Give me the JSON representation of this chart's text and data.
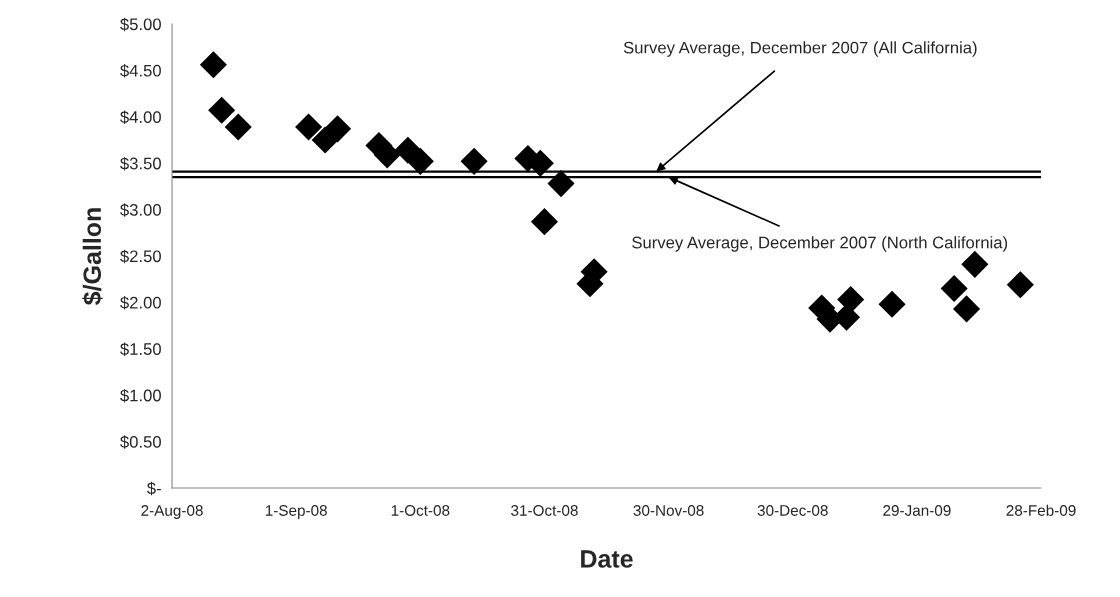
{
  "chart_data": {
    "type": "scatter",
    "xlabel": "Date",
    "ylabel": "$/Gallon",
    "x": [
      "2008-08-12",
      "2008-08-14",
      "2008-08-18",
      "2008-09-04",
      "2008-09-08",
      "2008-09-11",
      "2008-09-21",
      "2008-09-23",
      "2008-09-28",
      "2008-10-01",
      "2008-10-14",
      "2008-10-27",
      "2008-10-30",
      "2008-11-04",
      "2008-10-31",
      "2008-11-12",
      "2008-11-11",
      "2009-01-06",
      "2009-01-08",
      "2009-01-12",
      "2009-01-13",
      "2009-01-23",
      "2009-02-07",
      "2009-02-10",
      "2009-02-12",
      "2009-02-23"
    ],
    "series": [
      {
        "color": "#000000",
        "values": [
          4.56,
          4.07,
          3.89,
          3.89,
          3.75,
          3.87,
          3.69,
          3.59,
          3.64,
          3.52,
          3.52,
          3.55,
          3.5,
          3.28,
          2.87,
          2.33,
          2.2,
          1.94,
          1.82,
          1.84,
          2.03,
          1.98,
          2.15,
          1.93,
          2.41,
          2.19
        ]
      }
    ],
    "marker": "diamond",
    "xlim": [
      "2008-08-02",
      "2009-02-28"
    ],
    "xticks": [
      {
        "value": "2008-08-02",
        "label": "2-Aug-08"
      },
      {
        "value": "2008-09-01",
        "label": "1-Sep-08"
      },
      {
        "value": "2008-10-01",
        "label": "1-Oct-08"
      },
      {
        "value": "2008-10-31",
        "label": "31-Oct-08"
      },
      {
        "value": "2008-11-30",
        "label": "30-Nov-08"
      },
      {
        "value": "2008-12-30",
        "label": "30-Dec-08"
      },
      {
        "value": "2009-01-29",
        "label": "29-Jan-09"
      },
      {
        "value": "2009-02-28",
        "label": "28-Feb-09"
      }
    ],
    "ylim": [
      0,
      5
    ],
    "yticks": [
      {
        "value": 0,
        "label": "$-"
      },
      {
        "value": 0.5,
        "label": "$0.50"
      },
      {
        "value": 1,
        "label": "$1.00"
      },
      {
        "value": 1.5,
        "label": "$1.50"
      },
      {
        "value": 2,
        "label": "$2.00"
      },
      {
        "value": 2.5,
        "label": "$2.50"
      },
      {
        "value": 3,
        "label": "$3.00"
      },
      {
        "value": 3.5,
        "label": "$3.50"
      },
      {
        "value": 4,
        "label": "$4.00"
      },
      {
        "value": 4.5,
        "label": "$4.50"
      },
      {
        "value": 5,
        "label": "$5.00"
      }
    ],
    "ref_lines": [
      {
        "axis": "y",
        "value": 3.41,
        "color": "#000000"
      },
      {
        "axis": "y",
        "value": 3.35,
        "color": "#000000"
      }
    ],
    "annotations": [
      {
        "text": "Survey Average, December 2007 (All California)",
        "x": "2008-11-27",
        "y": 3.41
      },
      {
        "text": "Survey Average, December 2007 (North California)",
        "x": "2008-11-30",
        "y": 3.35
      }
    ],
    "grid": false,
    "legend": false
  }
}
